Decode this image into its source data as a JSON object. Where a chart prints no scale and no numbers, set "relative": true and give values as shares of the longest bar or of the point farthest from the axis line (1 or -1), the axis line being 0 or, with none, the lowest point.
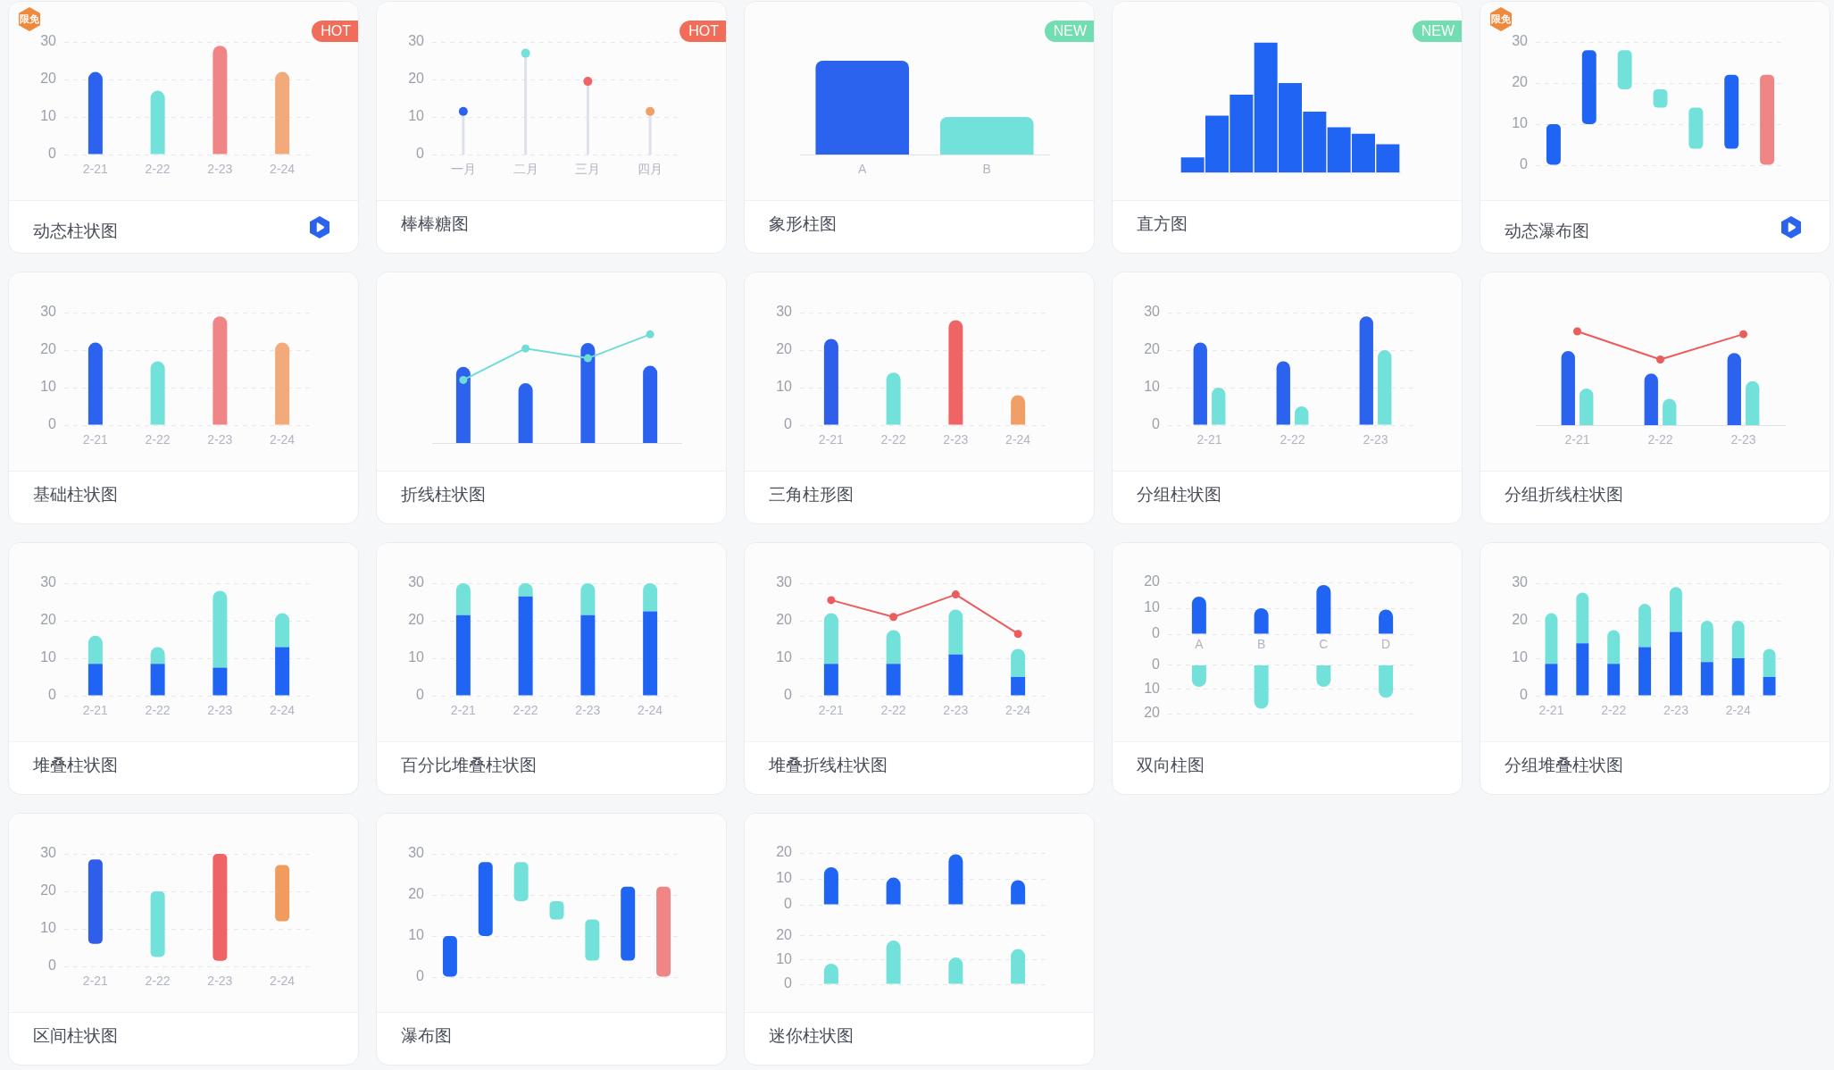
{
  "chart_data": [
    {
      "type": "bar",
      "title": "动态柱状图",
      "categories": [
        "2-21",
        "2-22",
        "2-23",
        "2-24"
      ],
      "values": [
        22,
        17,
        29,
        22
      ],
      "colors": [
        "#2b63ee",
        "#72e1da",
        "#f08585",
        "#f2aa7b"
      ],
      "ylim": [
        0,
        30
      ],
      "yticks": [
        0,
        10,
        20,
        30
      ],
      "grid": "y",
      "annotations": [
        "限免",
        "HOT"
      ]
    },
    {
      "type": "lollipop",
      "title": "棒棒糖图",
      "categories": [
        "一月",
        "二月",
        "三月",
        "四月"
      ],
      "values": [
        11.5,
        27,
        19.5,
        11.5
      ],
      "colors": [
        "#2b63ee",
        "#72e1da",
        "#ef6565",
        "#f0a066"
      ],
      "ylim": [
        0,
        30
      ],
      "yticks": [
        0,
        10,
        20,
        30
      ],
      "grid": "y",
      "marker": "circle",
      "annotations": [
        "HOT"
      ]
    },
    {
      "type": "bar",
      "title": "象形柱图",
      "categories": [
        "A",
        "B"
      ],
      "values": [
        1,
        0.4
      ],
      "colors": [
        "#2b63ee",
        "#72e1da"
      ],
      "relative": true,
      "tick_labels": "x",
      "annotations": [
        "NEW"
      ]
    },
    {
      "type": "bar",
      "title": "直方图",
      "categories": [
        null,
        null,
        null,
        null,
        null,
        null,
        null,
        null,
        null
      ],
      "values": [
        0.12,
        0.44,
        0.6,
        1,
        0.69,
        0.47,
        0.35,
        0.3,
        0.22
      ],
      "color": "#2064f4",
      "relative": true,
      "tick_labels": false,
      "annotations": [
        "NEW"
      ]
    },
    {
      "type": "bar",
      "title": "动态瀑布图",
      "categories": [
        null,
        null,
        null,
        null,
        null,
        null,
        null
      ],
      "values": [
        10,
        18,
        9.5,
        4.5,
        10,
        18,
        22
      ],
      "base": [
        0,
        10,
        18.5,
        14,
        4,
        4,
        0
      ],
      "colors": [
        "#2064f4",
        "#2064f4",
        "#72e1da",
        "#72e1da",
        "#72e1da",
        "#2064f4",
        "#f08585"
      ],
      "ylim": [
        0,
        30
      ],
      "yticks": [
        0,
        10,
        20,
        30
      ],
      "grid": "y",
      "tick_labels": "y",
      "annotations": [
        "限免"
      ]
    },
    {
      "type": "bar",
      "title": "基础柱状图",
      "categories": [
        "2-21",
        "2-22",
        "2-23",
        "2-24"
      ],
      "values": [
        22,
        17,
        29,
        22
      ],
      "colors": [
        "#2b63ee",
        "#72e1da",
        "#f08585",
        "#f2aa7b"
      ],
      "ylim": [
        0,
        30
      ],
      "yticks": [
        0,
        10,
        20,
        30
      ],
      "grid": "y"
    },
    {
      "type": "bar",
      "title": "折线柱状图",
      "categories": [
        null,
        null,
        null,
        null
      ],
      "relative": true,
      "tick_labels": false,
      "marker": "circle",
      "series": [
        {
          "color": "#2b63ee",
          "values": [
            0.7,
            0.55,
            0.92,
            0.71
          ]
        },
        {
          "type": "line",
          "color": "#6fdcd6",
          "values": [
            0.58,
            0.87,
            0.78,
            1
          ]
        }
      ]
    },
    {
      "type": "bar",
      "title": "三角柱形图",
      "categories": [
        "2-21",
        "2-22",
        "2-23",
        "2-24"
      ],
      "values": [
        23,
        14,
        28,
        8
      ],
      "colors": [
        "#2f5fea",
        "#72e1da",
        "#ef6565",
        "#f0a066"
      ],
      "ylim": [
        0,
        30
      ],
      "yticks": [
        0,
        10,
        20,
        30
      ],
      "grid": "y"
    },
    {
      "type": "bar",
      "title": "分组柱状图",
      "categories": [
        "2-21",
        "2-22",
        "2-23"
      ],
      "ylim": [
        0,
        30
      ],
      "yticks": [
        0,
        10,
        20,
        30
      ],
      "grid": "y",
      "series": [
        {
          "color": "#2b63ee",
          "values": [
            22,
            17,
            29
          ]
        },
        {
          "color": "#72e1da",
          "values": [
            10,
            5,
            20
          ]
        }
      ]
    },
    {
      "type": "bar",
      "title": "分组折线柱状图",
      "categories": [
        "2-21",
        "2-22",
        "2-23"
      ],
      "relative": true,
      "tick_labels": "x",
      "marker": "circle",
      "series": [
        {
          "color": "#2b63ee",
          "values": [
            0.79,
            0.55,
            0.77
          ]
        },
        {
          "color": "#72e1da",
          "values": [
            0.39,
            0.28,
            0.47
          ]
        },
        {
          "type": "line",
          "color": "#eb5c5c",
          "values": [
            1,
            0.7,
            0.97
          ]
        }
      ]
    },
    {
      "type": "bar",
      "title": "堆叠柱状图",
      "categories": [
        "2-21",
        "2-22",
        "2-23",
        "2-24"
      ],
      "stacked": true,
      "ylim": [
        0,
        30
      ],
      "yticks": [
        0,
        10,
        20,
        30
      ],
      "grid": "y",
      "series": [
        {
          "color": "#2064f4",
          "values": [
            8.5,
            8.5,
            7.5,
            13
          ]
        },
        {
          "color": "#72e1da",
          "values": [
            7.5,
            4.5,
            20.5,
            9
          ]
        }
      ]
    },
    {
      "type": "bar",
      "title": "百分比堆叠柱状图",
      "categories": [
        "2-21",
        "2-22",
        "2-23",
        "2-24"
      ],
      "stacked": true,
      "ylim": [
        0,
        30
      ],
      "yticks": [
        0,
        10,
        20,
        30
      ],
      "grid": "y",
      "series": [
        {
          "color": "#2064f4",
          "values": [
            21.5,
            26.5,
            21.5,
            22.5
          ]
        },
        {
          "color": "#72e1da",
          "values": [
            8.5,
            3.5,
            8.5,
            7.5
          ]
        }
      ]
    },
    {
      "type": "bar",
      "title": "堆叠折线柱状图",
      "categories": [
        "2-21",
        "2-22",
        "2-23",
        "2-24"
      ],
      "stacked": true,
      "ylim": [
        0,
        30
      ],
      "yticks": [
        0,
        10,
        20,
        30
      ],
      "grid": "y",
      "marker": "circle",
      "series": [
        {
          "color": "#2064f4",
          "values": [
            8.5,
            8.5,
            11,
            5
          ]
        },
        {
          "color": "#72e1da",
          "values": [
            13.5,
            9,
            12,
            7.5
          ]
        },
        {
          "type": "line",
          "color": "#eb5c5c",
          "values": [
            25.5,
            21,
            27,
            16.5
          ]
        }
      ]
    },
    {
      "type": "bar",
      "title": "双向柱图",
      "categories": [
        "A",
        "B",
        "C",
        "D"
      ],
      "values": [
        14.5,
        10,
        19,
        9.5
      ],
      "color": "#2064f4",
      "ylim": [
        0,
        20
      ],
      "yticks": [
        0,
        10,
        20
      ],
      "grid": "y"
    },
    {
      "type": "bar",
      "categories": [
        null,
        null,
        null,
        null
      ],
      "values": [
        9,
        18,
        9,
        13.5
      ],
      "color": "#72e1da",
      "ylim": [
        20,
        0
      ],
      "yticks": [
        0,
        10,
        20
      ],
      "grid": "y",
      "tick_labels": "y"
    },
    {
      "type": "bar",
      "title": "分组堆叠柱状图",
      "categories": [
        "2-21",
        null,
        "2-22",
        null,
        "2-23",
        null,
        "2-24",
        null
      ],
      "stacked": true,
      "ylim": [
        0,
        30
      ],
      "yticks": [
        0,
        10,
        20,
        30
      ],
      "grid": "y",
      "series": [
        {
          "color": "#2064f4",
          "values": [
            8.5,
            14,
            8.5,
            13,
            17,
            9,
            10,
            5
          ]
        },
        {
          "color": "#72e1da",
          "values": [
            13.5,
            13.5,
            9,
            11.5,
            12,
            11,
            10,
            7.5
          ]
        }
      ]
    },
    {
      "type": "bar",
      "title": "区间柱状图",
      "categories": [
        "2-21",
        "2-22",
        "2-23",
        "2-24"
      ],
      "values": [
        22.5,
        17.5,
        28.5,
        15
      ],
      "base": [
        6,
        2.5,
        1.5,
        12
      ],
      "colors": [
        "#2f5fea",
        "#72e1da",
        "#ee6363",
        "#f09c60"
      ],
      "ylim": [
        0,
        30
      ],
      "yticks": [
        0,
        10,
        20,
        30
      ],
      "grid": "y"
    },
    {
      "type": "bar",
      "title": "瀑布图",
      "categories": [
        null,
        null,
        null,
        null,
        null,
        null,
        null
      ],
      "values": [
        10,
        18,
        9.5,
        4.5,
        10,
        18,
        22
      ],
      "base": [
        0,
        10,
        18.5,
        14,
        4,
        4,
        0
      ],
      "colors": [
        "#2064f4",
        "#2064f4",
        "#72e1da",
        "#72e1da",
        "#72e1da",
        "#2064f4",
        "#f08585"
      ],
      "ylim": [
        0,
        30
      ],
      "yticks": [
        0,
        10,
        20,
        30
      ],
      "grid": "y",
      "tick_labels": "y"
    },
    {
      "type": "bar",
      "title": "迷你柱状图",
      "categories": [
        null,
        null,
        null,
        null
      ],
      "values": [
        14.5,
        10.5,
        19.5,
        9.5
      ],
      "color": "#2064f4",
      "ylim": [
        0,
        20
      ],
      "yticks": [
        0,
        10,
        20
      ],
      "grid": "y",
      "tick_labels": "y"
    },
    {
      "type": "bar",
      "categories": [
        null,
        null,
        null,
        null
      ],
      "values": [
        8.5,
        18,
        11,
        14.5
      ],
      "color": "#72e1da",
      "ylim": [
        0,
        20
      ],
      "yticks": [
        0,
        10,
        20
      ],
      "grid": "y",
      "tick_labels": "y"
    }
  ]
}
